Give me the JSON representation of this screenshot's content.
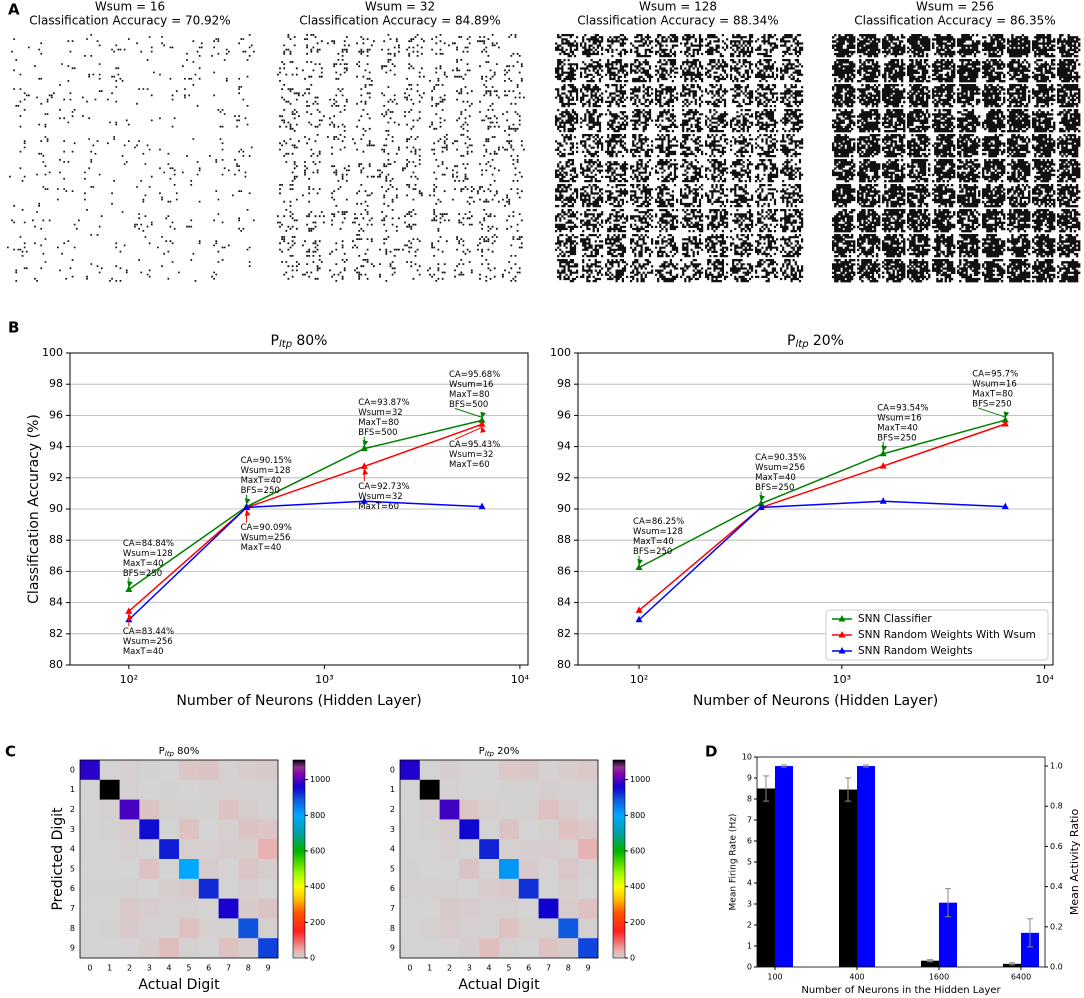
{
  "panel_labels": [
    "A",
    "B",
    "C",
    "D"
  ],
  "weight_maps": [
    {
      "title": "Wsum = 16",
      "subtitle": "Classification Accuracy = 70.92%"
    },
    {
      "title": "Wsum = 32",
      "subtitle": "Classification Accuracy = 84.89%"
    },
    {
      "title": "Wsum = 128",
      "subtitle": "Classification Accuracy = 88.34%"
    },
    {
      "title": "Wsum = 256",
      "subtitle": "Classification Accuracy = 86.35%"
    }
  ],
  "chart_data": [
    {
      "type": "line",
      "title": {
        "text": "P",
        "sub": "ltp",
        "suffix": "80%"
      },
      "xlabel": "Number of Neurons (Hidden Layer)",
      "ylabel": "Classification Accuracy (%)",
      "xscale": "log",
      "xlim": [
        50,
        11000
      ],
      "xticks": [
        {
          "value": 100,
          "label": "10²"
        },
        {
          "value": 1000,
          "label": "10³"
        },
        {
          "value": 10000,
          "label": "10⁴"
        }
      ],
      "ylim": [
        80,
        100
      ],
      "yticks": [
        80,
        82,
        84,
        86,
        88,
        90,
        92,
        94,
        96,
        98,
        100
      ],
      "grid": true,
      "x": [
        100,
        400,
        1600,
        6400
      ],
      "series": [
        {
          "name": "SNN Classifier",
          "color": "#008000",
          "values": [
            84.84,
            90.15,
            93.87,
            95.68
          ]
        },
        {
          "name": "SNN Random Weights With Wsum",
          "color": "#ff0000",
          "values": [
            83.44,
            90.09,
            92.73,
            95.43
          ]
        },
        {
          "name": "SNN Random Weights",
          "color": "#0000ff",
          "values": [
            82.9,
            90.1,
            90.5,
            90.15
          ]
        }
      ],
      "annotations": [
        {
          "lines": [
            "CA=84.84%",
            "Wsum=128",
            "MaxT=40",
            "BFS=250"
          ],
          "x": 100,
          "y": 84.84,
          "color": "#008000"
        },
        {
          "lines": [
            "CA=83.44%",
            "Wsum=256",
            "MaxT=40"
          ],
          "x": 100,
          "y": 83.44,
          "color": "#ff0000"
        },
        {
          "lines": [
            "CA=90.15%",
            "Wsum=128",
            "MaxT=40",
            "BFS=250"
          ],
          "x": 400,
          "y": 90.15,
          "color": "#008000"
        },
        {
          "lines": [
            "CA=90.09%",
            "Wsum=256",
            "MaxT=40"
          ],
          "x": 400,
          "y": 90.09,
          "color": "#ff0000"
        },
        {
          "lines": [
            "CA=93.87%",
            "Wsum=32",
            "MaxT=80",
            "BFS=500"
          ],
          "x": 1600,
          "y": 93.87,
          "color": "#008000"
        },
        {
          "lines": [
            "CA=92.73%",
            "Wsum=32",
            "MaxT=60"
          ],
          "x": 1600,
          "y": 92.73,
          "color": "#ff0000"
        },
        {
          "lines": [
            "CA=95.68%",
            "Wsum=16",
            "MaxT=80",
            "BFS=500"
          ],
          "x": 6400,
          "y": 95.68,
          "color": "#008000"
        },
        {
          "lines": [
            "CA=95.43%",
            "Wsum=32",
            "MaxT=60"
          ],
          "x": 6400,
          "y": 95.43,
          "color": "#ff0000"
        }
      ]
    },
    {
      "type": "line",
      "title": {
        "text": "P",
        "sub": "ltp",
        "suffix": "20%"
      },
      "xlabel": "Number of Neurons (Hidden Layer)",
      "xscale": "log",
      "xlim": [
        50,
        11000
      ],
      "xticks": [
        {
          "value": 100,
          "label": "10²"
        },
        {
          "value": 1000,
          "label": "10³"
        },
        {
          "value": 10000,
          "label": "10⁴"
        }
      ],
      "ylim": [
        80,
        100
      ],
      "yticks": [
        80,
        82,
        84,
        86,
        88,
        90,
        92,
        94,
        96,
        98,
        100
      ],
      "grid": true,
      "legend": "lower right",
      "x": [
        100,
        400,
        1600,
        6400
      ],
      "series": [
        {
          "name": "SNN Classifier",
          "color": "#008000",
          "values": [
            86.25,
            90.35,
            93.54,
            95.7
          ]
        },
        {
          "name": "SNN Random Weights With Wsum",
          "color": "#ff0000",
          "values": [
            83.5,
            90.1,
            92.75,
            95.45
          ]
        },
        {
          "name": "SNN Random Weights",
          "color": "#0000ff",
          "values": [
            82.9,
            90.1,
            90.5,
            90.15
          ]
        }
      ],
      "annotations": [
        {
          "lines": [
            "CA=86.25%",
            "Wsum=128",
            "MaxT=40",
            "BFS=250"
          ],
          "x": 100,
          "y": 86.25,
          "color": "#008000"
        },
        {
          "lines": [
            "CA=90.35%",
            "Wsum=256",
            "MaxT=40",
            "BFS=250"
          ],
          "x": 400,
          "y": 90.35,
          "color": "#008000"
        },
        {
          "lines": [
            "CA=93.54%",
            "Wsum=16",
            "MaxT=40",
            "BFS=250"
          ],
          "x": 1600,
          "y": 93.54,
          "color": "#008000"
        },
        {
          "lines": [
            "CA=95.7%",
            "Wsum=16",
            "MaxT=80",
            "BFS=250"
          ],
          "x": 6400,
          "y": 95.7,
          "color": "#008000"
        }
      ]
    },
    {
      "type": "heatmap",
      "title": {
        "text": "P",
        "sub": "ltp",
        "suffix": "80%"
      },
      "xlabel": "Actual Digit",
      "ylabel": "Predicted Digit",
      "x_categories": [
        "0",
        "1",
        "2",
        "3",
        "4",
        "5",
        "6",
        "7",
        "8",
        "9"
      ],
      "y_categories": [
        "0",
        "1",
        "2",
        "3",
        "4",
        "5",
        "6",
        "7",
        "8",
        "9"
      ],
      "values": [
        [
          975,
          0,
          5,
          2,
          1,
          15,
          18,
          3,
          8,
          10
        ],
        [
          0,
          1125,
          3,
          0,
          2,
          1,
          3,
          5,
          2,
          4
        ],
        [
          1,
          4,
          995,
          18,
          4,
          3,
          2,
          20,
          8,
          2
        ],
        [
          0,
          2,
          7,
          950,
          0,
          20,
          0,
          5,
          18,
          16
        ],
        [
          0,
          0,
          4,
          0,
          935,
          5,
          5,
          8,
          6,
          40
        ],
        [
          1,
          0,
          0,
          20,
          0,
          800,
          8,
          0,
          15,
          6
        ],
        [
          2,
          2,
          3,
          0,
          8,
          12,
          925,
          0,
          6,
          0
        ],
        [
          1,
          0,
          12,
          8,
          4,
          3,
          0,
          965,
          10,
          18
        ],
        [
          0,
          2,
          10,
          4,
          2,
          22,
          5,
          2,
          890,
          4
        ],
        [
          0,
          0,
          1,
          7,
          25,
          5,
          0,
          20,
          8,
          905
        ]
      ],
      "clim": [
        0,
        1110
      ],
      "cticks": [
        0,
        200,
        400,
        600,
        800,
        1000
      ],
      "colormap": [
        [
          0,
          "#d3d3d3"
        ],
        [
          40,
          "#e8b0b0"
        ],
        [
          150,
          "#ff2020"
        ],
        [
          250,
          "#ff5000"
        ],
        [
          330,
          "#ffc000"
        ],
        [
          400,
          "#ffff00"
        ],
        [
          470,
          "#a0ff00"
        ],
        [
          600,
          "#00b000"
        ],
        [
          700,
          "#00a0a0"
        ],
        [
          800,
          "#00a8ff"
        ],
        [
          880,
          "#1060e0"
        ],
        [
          960,
          "#1000d0"
        ],
        [
          1030,
          "#8000b0"
        ],
        [
          1070,
          "#903090"
        ],
        [
          1110,
          "#000000"
        ]
      ]
    },
    {
      "type": "heatmap",
      "title": {
        "text": "P",
        "sub": "ltp",
        "suffix": "20%"
      },
      "xlabel": "Actual Digit",
      "x_categories": [
        "0",
        "1",
        "2",
        "3",
        "4",
        "5",
        "6",
        "7",
        "8",
        "9"
      ],
      "y_categories": [
        "0",
        "1",
        "2",
        "3",
        "4",
        "5",
        "6",
        "7",
        "8",
        "9"
      ],
      "values": [
        [
          970,
          0,
          6,
          1,
          1,
          14,
          15,
          2,
          7,
          12
        ],
        [
          0,
          1120,
          4,
          0,
          1,
          2,
          3,
          6,
          3,
          5
        ],
        [
          1,
          5,
          990,
          16,
          5,
          2,
          3,
          22,
          9,
          1
        ],
        [
          0,
          2,
          8,
          955,
          0,
          18,
          0,
          4,
          20,
          14
        ],
        [
          0,
          0,
          5,
          0,
          930,
          4,
          6,
          7,
          5,
          38
        ],
        [
          2,
          0,
          1,
          18,
          1,
          820,
          10,
          1,
          14,
          5
        ],
        [
          3,
          3,
          4,
          0,
          9,
          11,
          920,
          0,
          7,
          1
        ],
        [
          1,
          0,
          10,
          9,
          3,
          4,
          0,
          960,
          9,
          20
        ],
        [
          1,
          3,
          9,
          5,
          2,
          20,
          4,
          3,
          885,
          3
        ],
        [
          0,
          0,
          1,
          6,
          24,
          4,
          0,
          21,
          10,
          902
        ]
      ],
      "clim": [
        0,
        1110
      ],
      "cticks": [
        0,
        200,
        400,
        600,
        800,
        1000
      ],
      "colormap": [
        [
          0,
          "#d3d3d3"
        ],
        [
          40,
          "#e8b0b0"
        ],
        [
          150,
          "#ff2020"
        ],
        [
          250,
          "#ff5000"
        ],
        [
          330,
          "#ffc000"
        ],
        [
          400,
          "#ffff00"
        ],
        [
          470,
          "#a0ff00"
        ],
        [
          600,
          "#00b000"
        ],
        [
          700,
          "#00a0a0"
        ],
        [
          800,
          "#00a8ff"
        ],
        [
          880,
          "#1060e0"
        ],
        [
          960,
          "#1000d0"
        ],
        [
          1030,
          "#8000b0"
        ],
        [
          1070,
          "#903090"
        ],
        [
          1110,
          "#000000"
        ]
      ]
    },
    {
      "type": "bar",
      "xlabel": "Number of Neurons in the Hidden Layer",
      "ylabel": "Mean Firing Rate (Hz)",
      "y2label": "Mean Activity Ratio",
      "categories": [
        "100",
        "400",
        "1600",
        "6400"
      ],
      "ylim": [
        0,
        10
      ],
      "yticks": [
        0,
        1,
        2,
        3,
        4,
        5,
        6,
        7,
        8,
        9,
        10
      ],
      "y2lim": [
        0,
        1.045
      ],
      "y2ticks": [
        {
          "value": 0,
          "label": "0.0"
        },
        {
          "value": 0.2,
          "label": "0.2"
        },
        {
          "value": 0.4,
          "label": "0.4"
        },
        {
          "value": 0.6,
          "label": "0.6"
        },
        {
          "value": 0.8,
          "label": "0.8"
        },
        {
          "value": 1,
          "label": "1.0"
        }
      ],
      "series": [
        {
          "color": "#000000",
          "values": [
            8.5,
            8.45,
            0.3,
            0.15
          ],
          "errors": [
            0.6,
            0.55,
            0.05,
            0.05
          ]
        },
        {
          "color": "#0000ff",
          "axis": "y2",
          "values": [
            1.0,
            1.0,
            0.32,
            0.17
          ],
          "errors": [
            0.005,
            0.005,
            0.07,
            0.07
          ]
        }
      ]
    }
  ]
}
